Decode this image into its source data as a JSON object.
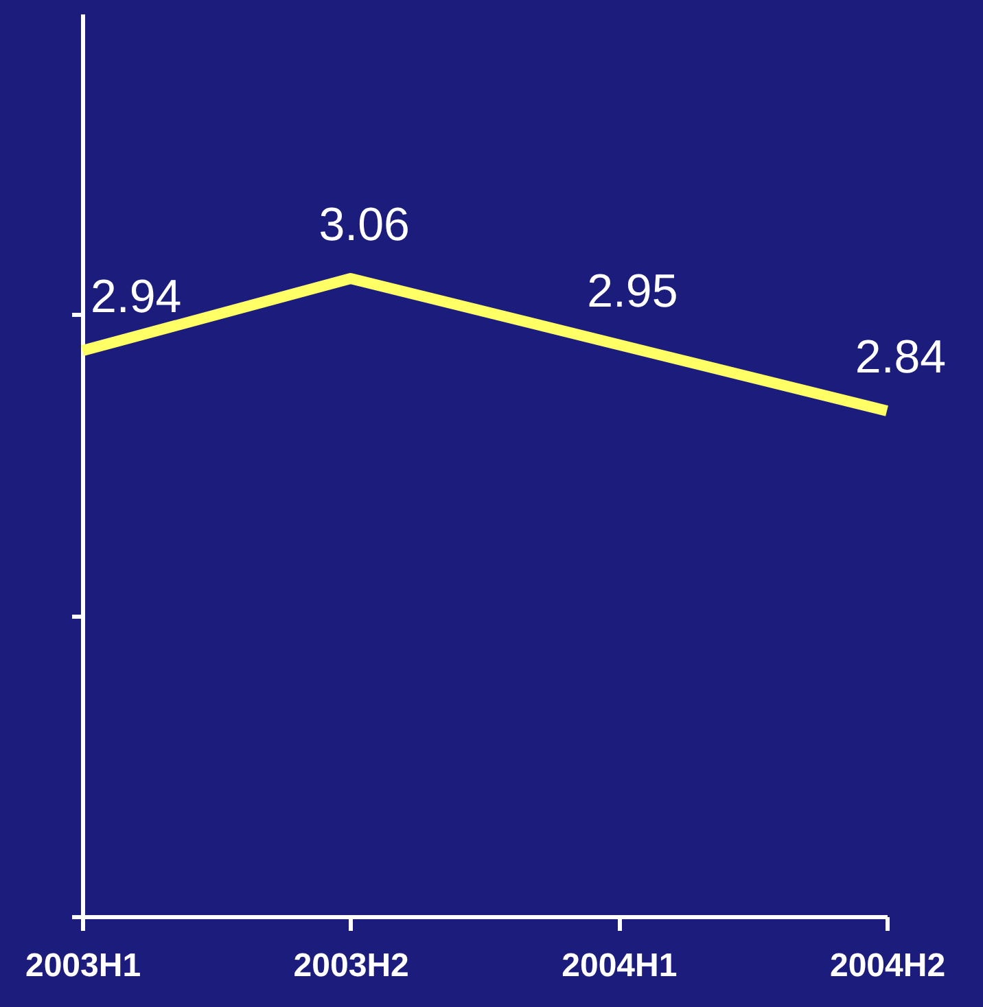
{
  "chart_data": {
    "type": "line",
    "categories": [
      "2003H1",
      "2003H2",
      "2004H1",
      "2004H2"
    ],
    "series": [
      {
        "color": "#ffff66",
        "values": [
          2.94,
          3.06,
          2.95,
          2.84
        ]
      }
    ],
    "ylim": [
      2,
      3.5
    ],
    "yticks": [
      {
        "value": 2,
        "label": null
      },
      {
        "value": 2.5,
        "label": null
      },
      {
        "value": 3,
        "label": null
      }
    ],
    "tick_labels": "x",
    "data_labels": true,
    "line_style": "solid"
  }
}
